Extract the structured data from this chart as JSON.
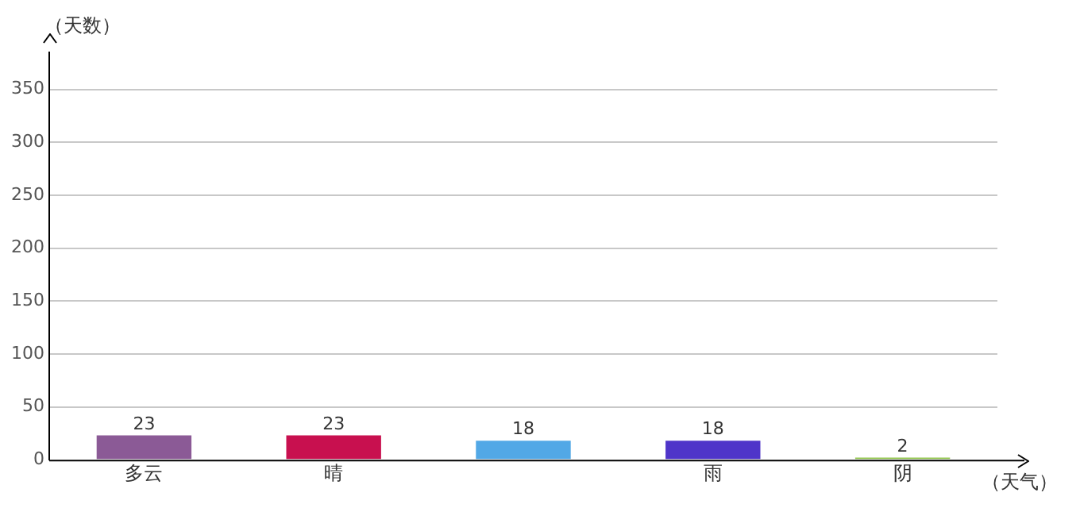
{
  "chart_data": {
    "type": "bar",
    "xlabel": "（天气）",
    "ylabel": "（天数）",
    "categories": [
      "多云",
      "晴",
      null,
      "雨",
      "阴"
    ],
    "values": [
      23,
      23,
      18,
      18,
      2
    ],
    "colors": [
      "#8b5a96",
      "#c8104f",
      "#52a8e6",
      "#4f35c9",
      "#90c44a"
    ],
    "ylim": [
      0,
      385
    ],
    "yticks": [
      0,
      50,
      100,
      150,
      200,
      250,
      300,
      350
    ],
    "grid": "y",
    "data_labels": true
  }
}
